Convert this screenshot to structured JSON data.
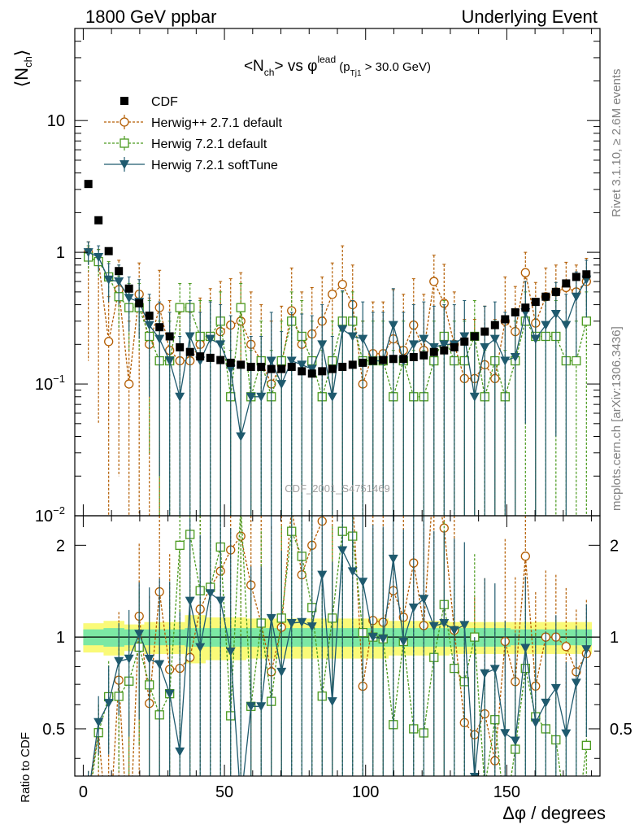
{
  "header": {
    "left": "1800 GeV ppbar",
    "right": "Underlying Event"
  },
  "side_labels": {
    "rivet": "Rivet 3.1.10, ≥ 2.6M events",
    "mcplots": "mcplots.cern.ch [arXiv:1306.3436]"
  },
  "watermark": "CDF_2001_S4751469",
  "chart_data": [
    {
      "type": "line",
      "panel": "main",
      "title": "<N_ch> vs φ^lead (p_Tj1 > 30.0 GeV)",
      "ylabel": "⟨N_ch⟩",
      "yscale": "log",
      "xlim": [
        -3,
        183
      ],
      "ylim": [
        0.01,
        50
      ],
      "yticks": [
        {
          "v": 0.01,
          "label": "10^-2"
        },
        {
          "v": 0.1,
          "label": "10^-1"
        },
        {
          "v": 1,
          "label": "1"
        },
        {
          "v": 10,
          "label": "10"
        }
      ],
      "legend_position": "top-left",
      "series": [
        {
          "name": "CDF",
          "marker": "square-filled",
          "color": "#000000",
          "x": [
            1.8,
            5.4,
            9,
            12.6,
            16.2,
            19.8,
            23.4,
            27,
            30.6,
            34.2,
            37.8,
            41.4,
            45,
            48.6,
            52.2,
            55.8,
            59.4,
            63,
            66.6,
            70.2,
            73.8,
            77.4,
            81,
            84.6,
            88.2,
            91.8,
            95.4,
            99,
            102.6,
            106.2,
            109.8,
            113.4,
            117,
            120.6,
            124.2,
            127.8,
            131.4,
            135,
            138.6,
            142.2,
            145.8,
            149.4,
            153,
            156.6,
            160.2,
            163.8,
            167.4,
            171,
            174.6,
            178.2
          ],
          "y": [
            3.3,
            1.75,
            1.02,
            0.72,
            0.53,
            0.41,
            0.33,
            0.27,
            0.23,
            0.19,
            0.175,
            0.162,
            0.158,
            0.152,
            0.145,
            0.14,
            0.135,
            0.135,
            0.13,
            0.13,
            0.135,
            0.125,
            0.12,
            0.125,
            0.13,
            0.135,
            0.14,
            0.145,
            0.15,
            0.152,
            0.155,
            0.155,
            0.16,
            0.165,
            0.175,
            0.18,
            0.19,
            0.21,
            0.23,
            0.25,
            0.28,
            0.31,
            0.35,
            0.38,
            0.42,
            0.46,
            0.5,
            0.58,
            0.65,
            0.68
          ]
        },
        {
          "name": "Herwig++ 2.7.1 default",
          "marker": "circle-open",
          "line": "dashed",
          "color": "#b35c00",
          "x": [
            1.8,
            5.4,
            9,
            12.6,
            16.2,
            19.8,
            23.4,
            27,
            30.6,
            34.2,
            37.8,
            41.4,
            45,
            48.6,
            52.2,
            55.8,
            59.4,
            63,
            66.6,
            70.2,
            73.8,
            77.4,
            81,
            84.6,
            88.2,
            91.8,
            95.4,
            99,
            102.6,
            106.2,
            109.8,
            113.4,
            117,
            120.6,
            124.2,
            127.8,
            131.4,
            135,
            138.6,
            142.2,
            145.8,
            149.4,
            153,
            156.6,
            160.2,
            163.8,
            167.4,
            171,
            174.6,
            178.2
          ],
          "y": [
            1.0,
            0.85,
            0.21,
            0.52,
            0.1,
            0.48,
            0.2,
            0.38,
            0.18,
            0.15,
            0.15,
            0.2,
            0.23,
            0.25,
            0.28,
            0.3,
            0.2,
            0.15,
            0.1,
            0.14,
            0.36,
            0.2,
            0.24,
            0.3,
            0.48,
            0.57,
            0.4,
            0.1,
            0.17,
            0.17,
            0.22,
            0.18,
            0.28,
            0.18,
            0.6,
            0.41,
            0.2,
            0.11,
            0.11,
            0.14,
            0.11,
            0.3,
            0.25,
            0.7,
            0.29,
            0.46,
            0.5,
            0.54,
            0.5,
            0.6
          ],
          "err_lo": [
            0.85,
            0.8,
            0.2,
            0.5,
            0.1,
            0.47,
            0.2,
            0.37,
            0.18,
            0.15,
            0.15,
            0.2,
            0.23,
            0.25,
            0.28,
            0.3,
            0.2,
            0.15,
            0.1,
            0.14,
            0.36,
            0.2,
            0.24,
            0.3,
            0.48,
            0.57,
            0.4,
            0.1,
            0.17,
            0.17,
            0.22,
            0.18,
            0.28,
            0.18,
            0.6,
            0.41,
            0.2,
            0.11,
            0.11,
            0.14,
            0.11,
            0.3,
            0.25,
            0.3,
            0.28,
            0.2,
            0.2,
            0.2,
            0.2,
            0.2
          ],
          "err_hi": [
            0.2,
            0.2,
            0.25,
            0.35,
            0.2,
            0.35,
            0.25,
            0.35,
            0.25,
            0.2,
            0.2,
            0.25,
            0.3,
            0.35,
            0.35,
            0.4,
            0.3,
            0.25,
            0.2,
            0.25,
            0.4,
            0.3,
            0.3,
            0.35,
            0.35,
            0.55,
            0.4,
            0.2,
            0.25,
            0.25,
            0.3,
            0.3,
            0.35,
            0.3,
            0.35,
            0.4,
            0.3,
            0.2,
            0.2,
            0.25,
            0.2,
            0.35,
            0.3,
            0.3,
            0.3,
            0.3,
            0.3,
            0.3,
            0.3,
            0.3
          ]
        },
        {
          "name": "Herwig 7.2.1 default",
          "marker": "square-open",
          "line": "dashed",
          "color": "#4a9a1e",
          "x": [
            1.8,
            5.4,
            9,
            12.6,
            16.2,
            19.8,
            23.4,
            27,
            30.6,
            34.2,
            37.8,
            41.4,
            45,
            48.6,
            52.2,
            55.8,
            59.4,
            63,
            66.6,
            70.2,
            73.8,
            77.4,
            81,
            84.6,
            88.2,
            91.8,
            95.4,
            99,
            102.6,
            106.2,
            109.8,
            113.4,
            117,
            120.6,
            124.2,
            127.8,
            131.4,
            135,
            138.6,
            142.2,
            145.8,
            149.4,
            153,
            156.6,
            160.2,
            163.8,
            167.4,
            171,
            174.6,
            178.2
          ],
          "y": [
            0.92,
            0.85,
            0.65,
            0.46,
            0.38,
            0.38,
            0.23,
            0.15,
            0.15,
            0.38,
            0.38,
            0.23,
            0.23,
            0.3,
            0.08,
            0.38,
            0.08,
            0.15,
            0.08,
            0.15,
            0.3,
            0.23,
            0.15,
            0.08,
            0.15,
            0.3,
            0.3,
            0.15,
            0.15,
            0.15,
            0.08,
            0.15,
            0.08,
            0.08,
            0.15,
            0.23,
            0.15,
            0.15,
            0.23,
            0.08,
            0.15,
            0.08,
            0.15,
            0.3,
            0.23,
            0.23,
            0.23,
            0.15,
            0.15,
            0.3
          ],
          "err_lo": [
            0.2,
            0.2,
            0.2,
            0.2,
            0.2,
            0.2,
            0.2,
            0.15,
            0.15,
            0.38,
            0.38,
            0.23,
            0.23,
            0.3,
            0.08,
            0.38,
            0.08,
            0.15,
            0.08,
            0.15,
            0.3,
            0.23,
            0.15,
            0.08,
            0.15,
            0.3,
            0.3,
            0.15,
            0.15,
            0.15,
            0.08,
            0.15,
            0.08,
            0.08,
            0.15,
            0.23,
            0.15,
            0.15,
            0.23,
            0.08,
            0.15,
            0.08,
            0.15,
            0.3,
            0.23,
            0.23,
            0.23,
            0.15,
            0.15,
            0.3
          ],
          "err_hi": [
            0.2,
            0.2,
            0.2,
            0.2,
            0.2,
            0.2,
            0.2,
            0.15,
            0.15,
            0.2,
            0.2,
            0.2,
            0.2,
            0.2,
            0.1,
            0.2,
            0.1,
            0.15,
            0.1,
            0.15,
            0.2,
            0.2,
            0.15,
            0.1,
            0.15,
            0.2,
            0.2,
            0.15,
            0.15,
            0.15,
            0.1,
            0.15,
            0.1,
            0.1,
            0.15,
            0.2,
            0.15,
            0.15,
            0.2,
            0.1,
            0.15,
            0.1,
            0.15,
            0.2,
            0.2,
            0.2,
            0.2,
            0.15,
            0.15,
            0.2
          ]
        },
        {
          "name": "Herwig 7.2.1 softTune",
          "marker": "triangle-down-filled",
          "line": "solid",
          "color": "#1f5a6e",
          "x": [
            1.8,
            5.4,
            9,
            12.6,
            16.2,
            19.8,
            23.4,
            27,
            30.6,
            34.2,
            37.8,
            41.4,
            45,
            48.6,
            52.2,
            55.8,
            59.4,
            63,
            66.6,
            70.2,
            73.8,
            77.4,
            81,
            84.6,
            88.2,
            91.8,
            95.4,
            99,
            102.6,
            106.2,
            109.8,
            113.4,
            117,
            120.6,
            124.2,
            127.8,
            131.4,
            135,
            138.6,
            142.2,
            145.8,
            149.4,
            153,
            156.6,
            160.2,
            163.8,
            167.4,
            171,
            174.6,
            178.2
          ],
          "y": [
            1.0,
            0.92,
            0.62,
            0.6,
            0.45,
            0.42,
            0.28,
            0.22,
            0.15,
            0.08,
            0.23,
            0.15,
            0.22,
            0.2,
            0.13,
            0.04,
            0.08,
            0.08,
            0.15,
            0.1,
            0.15,
            0.14,
            0.13,
            0.2,
            0.08,
            0.26,
            0.23,
            0.22,
            0.15,
            0.15,
            0.28,
            0.15,
            0.2,
            0.22,
            0.19,
            0.2,
            0.2,
            0.23,
            0.08,
            0.19,
            0.22,
            0.15,
            0.16,
            0.35,
            0.22,
            0.28,
            0.34,
            0.28,
            0.46,
            0.62
          ],
          "err_lo": [
            0.2,
            0.2,
            0.2,
            0.2,
            0.2,
            0.2,
            0.2,
            0.2,
            0.15,
            0.08,
            0.23,
            0.15,
            0.22,
            0.2,
            0.13,
            0.04,
            0.08,
            0.08,
            0.15,
            0.1,
            0.15,
            0.14,
            0.13,
            0.2,
            0.08,
            0.26,
            0.23,
            0.22,
            0.15,
            0.15,
            0.28,
            0.15,
            0.2,
            0.22,
            0.19,
            0.2,
            0.2,
            0.23,
            0.08,
            0.19,
            0.22,
            0.15,
            0.16,
            0.3,
            0.22,
            0.28,
            0.3,
            0.28,
            0.3,
            0.3
          ],
          "err_hi": [
            0.2,
            0.2,
            0.2,
            0.2,
            0.2,
            0.2,
            0.2,
            0.2,
            0.2,
            0.15,
            0.2,
            0.2,
            0.2,
            0.2,
            0.2,
            0.1,
            0.15,
            0.15,
            0.2,
            0.15,
            0.2,
            0.2,
            0.2,
            0.2,
            0.15,
            0.25,
            0.2,
            0.2,
            0.2,
            0.2,
            0.25,
            0.2,
            0.2,
            0.2,
            0.2,
            0.2,
            0.2,
            0.2,
            0.15,
            0.2,
            0.2,
            0.2,
            0.2,
            0.25,
            0.2,
            0.2,
            0.25,
            0.2,
            0.25,
            0.25
          ]
        }
      ]
    },
    {
      "type": "line",
      "panel": "ratio",
      "ylabel": "Ratio to CDF",
      "xlabel": "Δφ / degrees",
      "yscale": "log",
      "xlim": [
        -3,
        183
      ],
      "ylim": [
        0.35,
        2.5
      ],
      "xticks": [
        0,
        50,
        100,
        150
      ],
      "yticks": [
        0.5,
        1,
        2
      ],
      "band_inner": {
        "color": "#7ce8a4",
        "halfwidth": [
          0.06,
          0.06,
          0.07,
          0.07,
          0.06,
          0.06,
          0.06,
          0.06,
          0.06,
          0.06,
          0.07,
          0.07,
          0.07,
          0.07,
          0.07,
          0.07,
          0.07,
          0.07,
          0.07,
          0.07,
          0.07,
          0.07,
          0.07,
          0.07,
          0.07,
          0.07,
          0.07,
          0.07,
          0.07,
          0.07,
          0.07,
          0.07,
          0.07,
          0.07,
          0.07,
          0.07,
          0.07,
          0.07,
          0.07,
          0.07,
          0.07,
          0.07,
          0.06,
          0.06,
          0.06,
          0.06,
          0.06,
          0.06,
          0.06,
          0.06
        ]
      },
      "band_outer": {
        "color": "#fafa78",
        "halfwidth": [
          0.11,
          0.11,
          0.13,
          0.13,
          0.1,
          0.1,
          0.12,
          0.12,
          0.12,
          0.12,
          0.18,
          0.18,
          0.16,
          0.16,
          0.16,
          0.16,
          0.15,
          0.15,
          0.15,
          0.15,
          0.15,
          0.15,
          0.15,
          0.15,
          0.15,
          0.15,
          0.15,
          0.15,
          0.15,
          0.15,
          0.13,
          0.13,
          0.13,
          0.13,
          0.13,
          0.13,
          0.12,
          0.12,
          0.12,
          0.12,
          0.12,
          0.12,
          0.12,
          0.12,
          0.12,
          0.12,
          0.12,
          0.12,
          0.12,
          0.12
        ]
      }
    }
  ]
}
